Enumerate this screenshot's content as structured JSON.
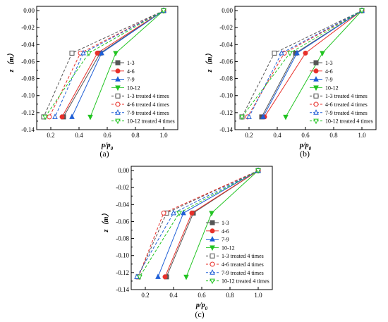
{
  "styles": {
    "series_colors": [
      "#555555",
      "#e8302a",
      "#1f5fd6",
      "#22c422"
    ]
  },
  "chart_data": [
    {
      "type": "line",
      "panel_label": "(a)",
      "xlabel": "p/p0",
      "ylabel": "z（m）",
      "xlim": [
        0.1,
        1.1
      ],
      "ylim": [
        -0.14,
        0.005
      ],
      "xticks": [
        "0.2",
        "0.4",
        "0.6",
        "0.8",
        "1.0"
      ],
      "yticks": [
        "0.00",
        "-0.02",
        "-0.04",
        "-0.06",
        "-0.08",
        "-0.10",
        "-0.12",
        "-0.14"
      ],
      "grid": false,
      "legend_position": "center-right",
      "series": [
        {
          "name": "1-3",
          "x": [
            1.0,
            0.55,
            0.29
          ],
          "y": [
            0.0,
            -0.05,
            -0.125
          ]
        },
        {
          "name": "4-6",
          "x": [
            1.0,
            0.53,
            0.28
          ],
          "y": [
            0.0,
            -0.05,
            -0.125
          ]
        },
        {
          "name": "7-9",
          "x": [
            1.0,
            0.56,
            0.35
          ],
          "y": [
            0.0,
            -0.05,
            -0.125
          ]
        },
        {
          "name": "10-12",
          "x": [
            1.0,
            0.66,
            0.48
          ],
          "y": [
            0.0,
            -0.05,
            -0.125
          ]
        },
        {
          "name": "1-3 treated 4 times",
          "x": [
            1.0,
            0.35,
            0.15
          ],
          "y": [
            0.0,
            -0.05,
            -0.125
          ]
        },
        {
          "name": "4-6 treated 4 times",
          "x": [
            1.0,
            0.41,
            0.19
          ],
          "y": [
            0.0,
            -0.05,
            -0.125
          ]
        },
        {
          "name": "7-9 treated 4 times",
          "x": [
            1.0,
            0.43,
            0.23
          ],
          "y": [
            0.0,
            -0.05,
            -0.125
          ]
        },
        {
          "name": "10-12 treated 4 times",
          "x": [
            1.0,
            0.47,
            0.16
          ],
          "y": [
            0.0,
            -0.05,
            -0.125
          ]
        }
      ]
    },
    {
      "type": "line",
      "panel_label": "(b)",
      "xlabel": "p/p0",
      "ylabel": "z（m）",
      "xlim": [
        0.1,
        1.1
      ],
      "ylim": [
        -0.14,
        0.005
      ],
      "xticks": [
        "0.2",
        "0.4",
        "0.6",
        "0.8",
        "1.0"
      ],
      "yticks": [
        "0.00",
        "-0.02",
        "-0.04",
        "-0.06",
        "-0.08",
        "-0.10",
        "-0.12",
        "-0.14"
      ],
      "grid": false,
      "legend_position": "center-right",
      "series": [
        {
          "name": "1-3",
          "x": [
            1.0,
            0.53,
            0.29
          ],
          "y": [
            0.0,
            -0.05,
            -0.125
          ]
        },
        {
          "name": "4-6",
          "x": [
            1.0,
            0.6,
            0.31
          ],
          "y": [
            0.0,
            -0.05,
            -0.125
          ]
        },
        {
          "name": "7-9",
          "x": [
            1.0,
            0.54,
            0.3
          ],
          "y": [
            0.0,
            -0.05,
            -0.125
          ]
        },
        {
          "name": "10-12",
          "x": [
            1.0,
            0.72,
            0.46
          ],
          "y": [
            0.0,
            -0.05,
            -0.125
          ]
        },
        {
          "name": "1-3 treated 4 times",
          "x": [
            1.0,
            0.38,
            0.15
          ],
          "y": [
            0.0,
            -0.05,
            -0.125
          ]
        },
        {
          "name": "4-6 treated 4 times",
          "x": [
            1.0,
            0.45,
            0.19
          ],
          "y": [
            0.0,
            -0.05,
            -0.125
          ]
        },
        {
          "name": "7-9 treated 4 times",
          "x": [
            1.0,
            0.43,
            0.2
          ],
          "y": [
            0.0,
            -0.05,
            -0.125
          ]
        },
        {
          "name": "10-12 treated 4 times",
          "x": [
            1.0,
            0.49,
            0.15
          ],
          "y": [
            0.0,
            -0.05,
            -0.125
          ]
        }
      ]
    },
    {
      "type": "line",
      "panel_label": "(c)",
      "xlabel": "p/p0",
      "ylabel": "z（m）",
      "xlim": [
        0.1,
        1.1
      ],
      "ylim": [
        -0.14,
        0.005
      ],
      "xticks": [
        "0.2",
        "0.4",
        "0.6",
        "0.8",
        "1.0"
      ],
      "yticks": [
        "0.00",
        "-0.02",
        "-0.04",
        "-0.06",
        "-0.08",
        "-0.10",
        "-0.12",
        "-0.14"
      ],
      "grid": false,
      "legend_position": "center-right",
      "series": [
        {
          "name": "1-3",
          "x": [
            1.0,
            0.54,
            0.35
          ],
          "y": [
            0.0,
            -0.05,
            -0.125
          ]
        },
        {
          "name": "4-6",
          "x": [
            1.0,
            0.53,
            0.34
          ],
          "y": [
            0.0,
            -0.05,
            -0.125
          ]
        },
        {
          "name": "7-9",
          "x": [
            1.0,
            0.47,
            0.29
          ],
          "y": [
            0.0,
            -0.05,
            -0.125
          ]
        },
        {
          "name": "10-12",
          "x": [
            1.0,
            0.67,
            0.49
          ],
          "y": [
            0.0,
            -0.05,
            -0.125
          ]
        },
        {
          "name": "1-3 treated 4 times",
          "x": [
            1.0,
            0.35,
            0.15
          ],
          "y": [
            0.0,
            -0.05,
            -0.125
          ]
        },
        {
          "name": "4-6 treated 4 times",
          "x": [
            1.0,
            0.33,
            0.15
          ],
          "y": [
            0.0,
            -0.05,
            -0.125
          ]
        },
        {
          "name": "7-9 treated 4 times",
          "x": [
            1.0,
            0.4,
            0.14
          ],
          "y": [
            0.0,
            -0.05,
            -0.125
          ]
        },
        {
          "name": "10-12 treated 4 times",
          "x": [
            1.0,
            0.44,
            0.16
          ],
          "y": [
            0.0,
            -0.05,
            -0.125
          ]
        }
      ]
    }
  ]
}
